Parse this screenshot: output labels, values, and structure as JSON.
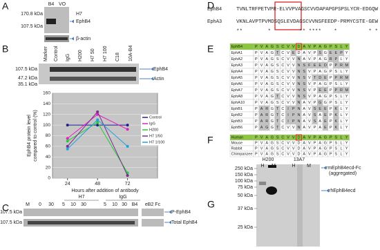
{
  "A": {
    "label": "A",
    "markers": [
      "170.8 kDa",
      "107.5 kDa"
    ],
    "lanes": [
      "B4",
      "VO"
    ],
    "group": "H7",
    "bands": [
      "EphB4",
      "β-actin"
    ]
  },
  "B": {
    "label": "B",
    "lanes": [
      "Marker",
      "Control",
      "IgG",
      "H200",
      "H7 50",
      "H7 100",
      "C18",
      "10A-B4"
    ],
    "markers": [
      "107.5 kDa",
      "47.2 kDa",
      "35.1 kDa"
    ],
    "bands": [
      "EphB4",
      "Actin"
    ],
    "chart": {
      "type": "line",
      "y_label": [
        "EphB4 protein level",
        "compared to control (%)"
      ],
      "x_label": "Hours after addition of antibody",
      "x": [
        24,
        48,
        72
      ],
      "xlim": [
        12,
        96
      ],
      "xticks": [
        24,
        48,
        72
      ],
      "ylim": [
        0,
        160
      ],
      "yticks": [
        0,
        20,
        40,
        60,
        80,
        100,
        120,
        140,
        160
      ],
      "series": [
        {
          "name": "Control",
          "color": "#1f1f8f",
          "values": [
            100,
            100,
            100
          ]
        },
        {
          "name": "IgG",
          "color": "#e020c0",
          "values": [
            75,
            120,
            92
          ]
        },
        {
          "name": "H200",
          "color": "#22cc33",
          "values": [
            70,
            105,
            10
          ]
        },
        {
          "name": "H7 1/50",
          "color": "#7a2a8a",
          "values": [
            60,
            125,
            5
          ]
        },
        {
          "name": "H7 1/100",
          "color": "#20a0e0",
          "values": [
            55,
            110,
            60
          ]
        }
      ]
    }
  },
  "C": {
    "label": "C",
    "lanes": [
      "M",
      "0",
      "30",
      "5",
      "10",
      "30",
      "5",
      "10",
      "30",
      "B4",
      "eB2 Fc"
    ],
    "groups": [
      "H7",
      "IgG"
    ],
    "markers": [
      "107.5 kDa",
      "107.5 kDa"
    ],
    "bands": [
      "P-EphB4",
      "Total EphB4"
    ]
  },
  "D": {
    "label": "D",
    "names": [
      "EphB4",
      "EphA3"
    ],
    "seqs": [
      "TVNLTRFPETVPR-ELVVPVAGSCVVDAPAPGPSPSLYCR-EDGQW",
      "VKNLAVPTPVMDSQSLEVDAGSCVVNSFEEDP-PRMYCSTE-GEW"
    ],
    "conservation": "**        *         ** ****    *          * *"
  },
  "E": {
    "label": "E",
    "rows": [
      {
        "name": "EphB4",
        "seq": [
          "P",
          "V",
          "A",
          "G",
          "S",
          "C",
          "V",
          "V",
          "D",
          "A",
          "V",
          "P",
          "A",
          "G",
          "P",
          "S",
          "L",
          "Y"
        ]
      },
      {
        "name": "EphA1",
        "seq": [
          "P",
          "V",
          "A",
          "G",
          "T",
          "C",
          "V",
          "E",
          "D",
          "A",
          "V",
          "P",
          "S",
          "G",
          "E",
          "E",
          "P",
          "Y"
        ]
      },
      {
        "name": "EphA2",
        "seq": [
          "P",
          "V",
          "A",
          "G",
          "S",
          "C",
          "V",
          "V",
          "N",
          "A",
          "V",
          "P",
          "A",
          "G",
          "R",
          "P",
          "L",
          "Y"
        ]
      },
      {
        "name": "EphA3",
        "seq": [
          "P",
          "V",
          "A",
          "G",
          "S",
          "C",
          "V",
          "V",
          "N",
          "S",
          "F",
          "E",
          "E",
          "D",
          "P",
          "P",
          "R",
          "M"
        ]
      },
      {
        "name": "EphA4",
        "seq": [
          "P",
          "V",
          "A",
          "G",
          "S",
          "C",
          "V",
          "V",
          "N",
          "S",
          "V",
          "P",
          "A",
          "G",
          "P",
          "S",
          "L",
          "Y"
        ]
      },
      {
        "name": "EphA5",
        "seq": [
          "P",
          "V",
          "A",
          "G",
          "S",
          "C",
          "V",
          "V",
          "N",
          "S",
          "V",
          "T",
          "D",
          "E",
          "P",
          "P",
          "R",
          "M"
        ]
      },
      {
        "name": "EphA6",
        "seq": [
          "P",
          "V",
          "A",
          "G",
          "S",
          "C",
          "V",
          "V",
          "N",
          "S",
          "V",
          "P",
          "A",
          "G",
          "P",
          "S",
          "L",
          "Y"
        ]
      },
      {
        "name": "EphA7",
        "seq": [
          "P",
          "V",
          "A",
          "G",
          "S",
          "C",
          "V",
          "V",
          "N",
          "S",
          "V",
          "P",
          "E",
          "E",
          "P",
          "P",
          "R",
          "M"
        ]
      },
      {
        "name": "EphA8",
        "seq": [
          "P",
          "V",
          "A",
          "G",
          "T",
          "C",
          "V",
          "V",
          "N",
          "S",
          "V",
          "P",
          "A",
          "G",
          "P",
          "S",
          "L",
          "Y"
        ]
      },
      {
        "name": "EphA10",
        "seq": [
          "P",
          "V",
          "A",
          "G",
          "S",
          "C",
          "V",
          "V",
          "N",
          "A",
          "V",
          "P",
          "G",
          "G",
          "P",
          "S",
          "L",
          "Y"
        ]
      },
      {
        "name": "EphB1",
        "seq": [
          "P",
          "A",
          "R",
          "G",
          "T",
          "C",
          "I",
          "P",
          "N",
          "A",
          "V",
          "S",
          "E",
          "E",
          "P",
          "K",
          "L",
          "Y"
        ]
      },
      {
        "name": "EphB2",
        "seq": [
          "P",
          "A",
          "R",
          "G",
          "T",
          "C",
          "I",
          "P",
          "N",
          "A",
          "V",
          "S",
          "A",
          "E",
          "P",
          "K",
          "L",
          "Y"
        ]
      },
      {
        "name": "EphB3",
        "seq": [
          "P",
          "A",
          "R",
          "G",
          "T",
          "C",
          "I",
          "P",
          "N",
          "A",
          "V",
          "S",
          "A",
          "E",
          "P",
          "K",
          "L",
          "Y"
        ]
      },
      {
        "name": "EphB6",
        "seq": [
          "P",
          "A",
          "G",
          "G",
          "T",
          "C",
          "V",
          "V",
          "N",
          "A",
          "V",
          "P",
          "A",
          "E",
          "P",
          "K",
          "L",
          "Y"
        ]
      }
    ]
  },
  "F": {
    "label": "F",
    "rows": [
      {
        "name": "Human",
        "seq": [
          "P",
          "V",
          "A",
          "G",
          "S",
          "C",
          "V",
          "V",
          "D",
          "A",
          "V",
          "P",
          "A",
          "G",
          "P",
          "S",
          "L",
          "Y"
        ]
      },
      {
        "name": "Mouse",
        "seq": [
          "P",
          "V",
          "A",
          "G",
          "S",
          "C",
          "V",
          "V",
          "D",
          "A",
          "V",
          "P",
          "A",
          "G",
          "P",
          "S",
          "L",
          "Y"
        ]
      },
      {
        "name": "Rabbit",
        "seq": [
          "P",
          "V",
          "A",
          "G",
          "S",
          "C",
          "V",
          "V",
          "D",
          "A",
          "V",
          "P",
          "A",
          "G",
          "P",
          "S",
          "L",
          "Y"
        ]
      },
      {
        "name": "Chimpanzee",
        "seq": [
          "P",
          "V",
          "A",
          "G",
          "S",
          "C",
          "V",
          "V",
          "D",
          "A",
          "V",
          "P",
          "A",
          "G",
          "P",
          "S",
          "L",
          "Y"
        ]
      }
    ]
  },
  "G": {
    "label": "G",
    "antibodies": [
      "H200",
      "13A7"
    ],
    "lanes": [
      "H",
      "M",
      "H",
      "M"
    ],
    "markers": [
      "250 kDa",
      "150 kDa",
      "100 kDa",
      "75 kDa",
      "50 kDa",
      "37 kDa",
      "25 kDa"
    ],
    "bands": [
      "rmEphB4ecd-Fc",
      "(aggregated)",
      "rhEphB4ecd"
    ]
  }
}
